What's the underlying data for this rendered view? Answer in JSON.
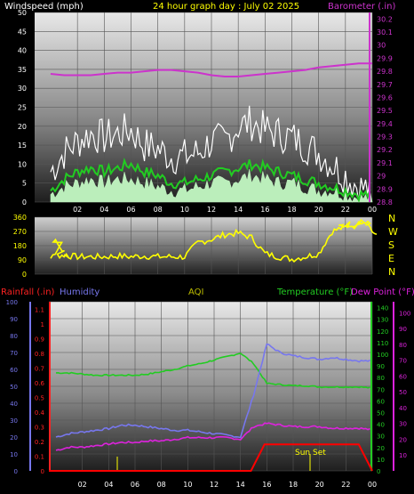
{
  "title": "24 hour graph day : July 02 2025",
  "colors": {
    "background": "#000000",
    "title": "#ffff00",
    "wind_label": "#ffffff",
    "barometer": "#cc33cc",
    "direction": "#ffff00",
    "rainfall": "#ff0000",
    "humidity": "#7777ee",
    "aqi": "#bbbb00",
    "temperature": "#22cc22",
    "dew_point": "#dd22dd",
    "gust": "#ffffff",
    "wind_avg": "#22cc22",
    "wind_speed": "#bbeebb",
    "sunset": "#ffff00"
  },
  "x_ticks": [
    "02",
    "04",
    "06",
    "08",
    "10",
    "12",
    "14",
    "16",
    "18",
    "20",
    "22",
    "00"
  ],
  "chart_data": [
    {
      "type": "line",
      "name": "wind-barometer",
      "left_label": "Windspeed (mph)",
      "right_label": "Barometer (.in)",
      "left_ticks": [
        0,
        5,
        10,
        15,
        20,
        25,
        30,
        35,
        40,
        45,
        50
      ],
      "left_range": [
        0,
        50
      ],
      "right_ticks": [
        "28.8",
        "28.9",
        "29",
        "29.1",
        "29.2",
        "29.3",
        "29.4",
        "29.5",
        "29.6",
        "29.7",
        "29.8",
        "29.9",
        "30",
        "30.1",
        "30.2"
      ],
      "right_range": [
        28.8,
        30.25
      ],
      "hours": [
        0,
        1,
        2,
        3,
        4,
        5,
        6,
        7,
        8,
        9,
        10,
        11,
        12,
        13,
        14,
        15,
        16,
        17,
        18,
        19,
        20,
        21,
        22,
        23,
        24
      ],
      "gust": [
        8,
        13,
        16,
        18,
        17,
        18,
        19,
        15,
        14,
        12,
        12,
        13,
        16,
        16,
        20,
        21,
        19,
        18,
        17,
        15,
        13,
        10,
        7,
        4,
        3
      ],
      "wind_avg": [
        3,
        6,
        8,
        9,
        8,
        9,
        10,
        8,
        7,
        5,
        5,
        6,
        7,
        8,
        9,
        10,
        9,
        8,
        7,
        6,
        5,
        4,
        3,
        2,
        2
      ],
      "wind_speed": [
        2,
        4,
        5,
        6,
        5,
        6,
        6,
        5,
        4,
        3,
        3,
        4,
        5,
        5,
        6,
        7,
        6,
        5,
        5,
        4,
        3,
        3,
        2,
        1,
        1
      ],
      "barometer": [
        29.78,
        29.77,
        29.77,
        29.77,
        29.78,
        29.79,
        29.79,
        29.8,
        29.81,
        29.81,
        29.8,
        29.79,
        29.77,
        29.76,
        29.76,
        29.77,
        29.78,
        29.79,
        29.8,
        29.81,
        29.83,
        29.84,
        29.85,
        29.86,
        29.86
      ]
    },
    {
      "type": "line",
      "name": "wind-direction",
      "left_ticks": [
        0,
        90,
        180,
        270,
        360
      ],
      "left_range": [
        0,
        360
      ],
      "compass": [
        "N",
        "W",
        "S",
        "E",
        "N"
      ],
      "hours": [
        0,
        0.2,
        0.5,
        1,
        2,
        3,
        4,
        5,
        6,
        7,
        8,
        9,
        10,
        11,
        12,
        13,
        14,
        15,
        16,
        17,
        18,
        19,
        20,
        21,
        21.5,
        22,
        22.5,
        23,
        23.5,
        24
      ],
      "direction": [
        100,
        220,
        120,
        120,
        110,
        110,
        110,
        115,
        110,
        115,
        110,
        110,
        110,
        200,
        220,
        250,
        260,
        230,
        130,
        110,
        95,
        110,
        130,
        270,
        300,
        320,
        300,
        330,
        310,
        230
      ]
    },
    {
      "type": "line",
      "name": "weather-trends",
      "rain_label": "Rainfall (.in)",
      "humidity_label": "Humidity",
      "aqi_label": "AQI",
      "temp_label": "Temperature (°F)",
      "dew_label": "Dew Point (°F)",
      "annotation": "Sun Set",
      "humidity_ticks": [
        0,
        10,
        20,
        30,
        40,
        50,
        60,
        70,
        80,
        90,
        100
      ],
      "humidity_range": [
        0,
        100
      ],
      "rain_ticks": [
        "0",
        "0.1",
        "0.2",
        "0.3",
        "0.4",
        "0.5",
        "0.6",
        "0.7",
        "0.8",
        "0.9",
        "1",
        "1.1"
      ],
      "rain_range": [
        0,
        1.15
      ],
      "temp_ticks": [
        0,
        10,
        20,
        30,
        40,
        50,
        60,
        70,
        80,
        90,
        100,
        110,
        120,
        130,
        140
      ],
      "temp_range": [
        0,
        145
      ],
      "right2_ticks": [
        10,
        20,
        30,
        40,
        50,
        60,
        70,
        80,
        90,
        100
      ],
      "hours": [
        0,
        1,
        2,
        3,
        4,
        5,
        6,
        7,
        8,
        9,
        10,
        11,
        12,
        13,
        14,
        15,
        16,
        17,
        18,
        19,
        20,
        21,
        22,
        23,
        24
      ],
      "temperature": [
        84,
        84,
        83,
        82,
        82,
        82,
        82,
        83,
        85,
        87,
        90,
        92,
        95,
        98,
        101,
        92,
        75,
        74,
        73,
        73,
        72,
        72,
        72,
        72,
        71
      ],
      "humidity": [
        20,
        22,
        23,
        24,
        25,
        27,
        27,
        26,
        25,
        24,
        24,
        23,
        22,
        21,
        20,
        45,
        75,
        70,
        68,
        67,
        66,
        67,
        66,
        65,
        65
      ],
      "dew_point": [
        13,
        15,
        15,
        16,
        17,
        18,
        18,
        19,
        19,
        20,
        21,
        21,
        21,
        21,
        20,
        28,
        30,
        29,
        28,
        28,
        28,
        27,
        27,
        27,
        26
      ],
      "rainfall": [
        0,
        0,
        0,
        0,
        0,
        0,
        0,
        0,
        0,
        0,
        0,
        0,
        0,
        0,
        0,
        0,
        0.18,
        0.18,
        0.18,
        0.18,
        0.18,
        0.18,
        0.18,
        0.18,
        0
      ]
    }
  ]
}
